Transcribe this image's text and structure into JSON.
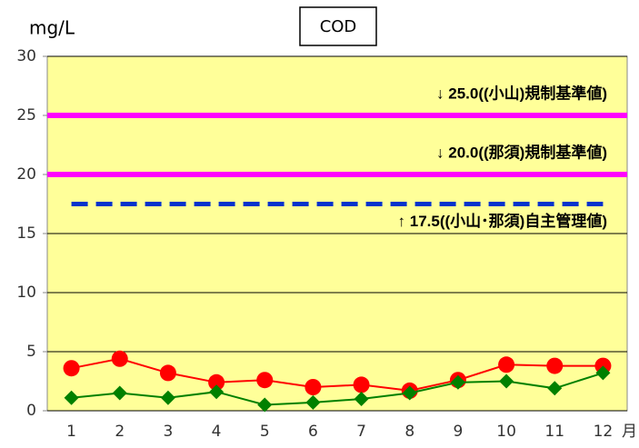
{
  "chart_data": {
    "type": "line",
    "title": "COD",
    "y_label": "mg/L",
    "x_unit": "月",
    "categories": [
      "1",
      "2",
      "3",
      "4",
      "5",
      "6",
      "7",
      "8",
      "9",
      "10",
      "11",
      "12"
    ],
    "series": [
      {
        "color": "#ff0000",
        "marker": "circle",
        "values": [
          3.6,
          4.4,
          3.2,
          2.4,
          2.6,
          2.0,
          2.2,
          1.7,
          2.6,
          3.9,
          3.8,
          3.8
        ]
      },
      {
        "color": "#008000",
        "marker": "diamond",
        "values": [
          1.1,
          1.5,
          1.1,
          1.6,
          0.5,
          0.7,
          1.0,
          1.5,
          2.4,
          2.5,
          1.9,
          3.2
        ]
      }
    ],
    "reference_lines": [
      {
        "value": 25,
        "label": "↓ 25.0((小山)規制基準値)",
        "color": "#ff00ff",
        "style": "solid"
      },
      {
        "value": 20,
        "label": "↓ 20.0((那須)規制基準値)",
        "color": "#ff00ff",
        "style": "solid"
      },
      {
        "value": 17.5,
        "label": "↑ 17.5((小山･那須)自主管理値)",
        "color": "#0033cc",
        "style": "dashed"
      }
    ],
    "ylim": [
      0,
      30
    ],
    "yticks": [
      0,
      5,
      10,
      15,
      20,
      25,
      30
    ],
    "grid": true,
    "plot_background": "#ffff99"
  }
}
